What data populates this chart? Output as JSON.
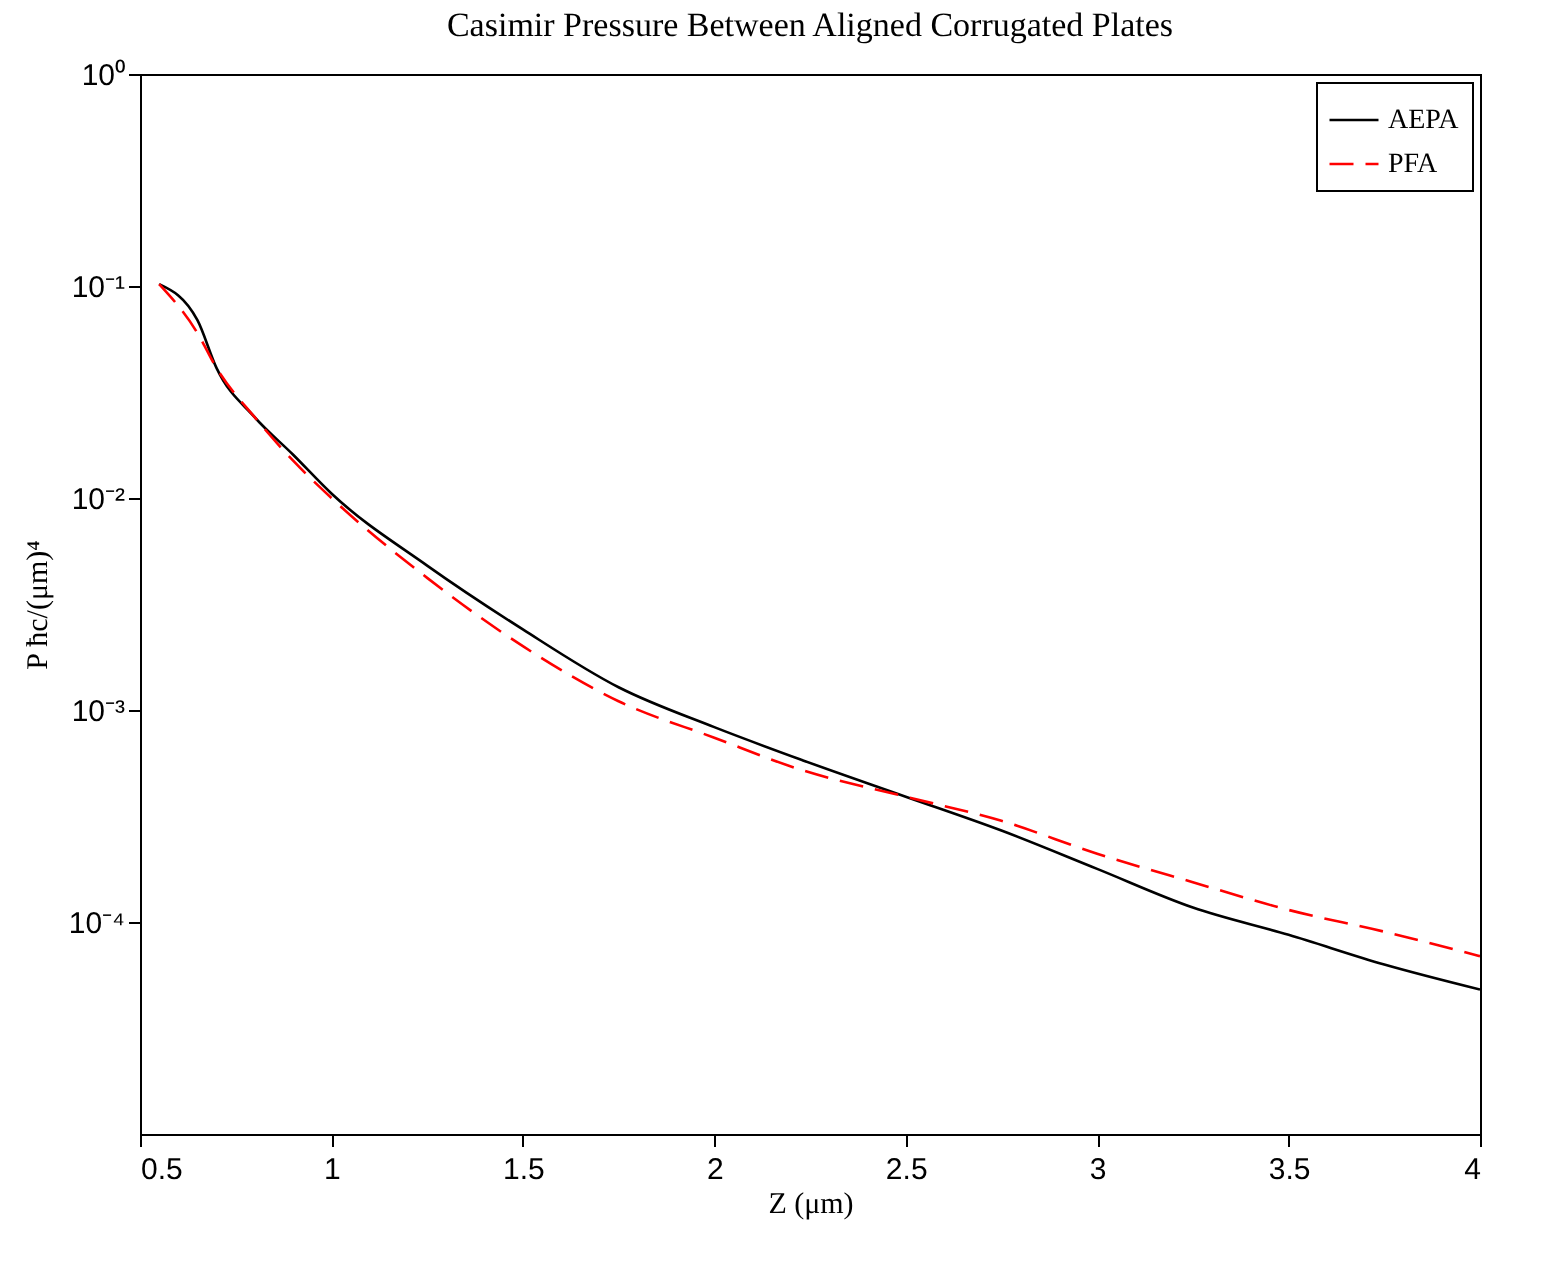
{
  "chart_data": {
    "type": "line",
    "title": "Casimir Pressure Between Aligned Corrugated Plates",
    "xlabel": "Z (μm)",
    "ylabel": "P ħc/(μm)⁴",
    "log": "y",
    "xlim": [
      0.5,
      4
    ],
    "xticks": [
      0.5,
      1,
      1.5,
      2,
      2.5,
      3,
      3.5,
      4
    ],
    "ylim": [
      1e-05,
      1
    ],
    "yticks": [
      {
        "value": 1,
        "label": "10⁰"
      },
      {
        "value": 0.1,
        "label": "10⁻¹"
      },
      {
        "value": 0.01,
        "label": "10⁻²"
      },
      {
        "value": 0.001,
        "label": "10⁻³"
      },
      {
        "value": 0.0001,
        "label": "10⁻⁴"
      }
    ],
    "grid": false,
    "legend": "top right",
    "marker": "none",
    "x": [
      0.55,
      0.65,
      0.7,
      0.8,
      0.9,
      1.0,
      1.25,
      1.5,
      1.75,
      2.0,
      2.23,
      2.5,
      2.75,
      3.0,
      3.25,
      3.5,
      3.75,
      4.0
    ],
    "series": [
      {
        "name": "AEPA",
        "color": "#000000",
        "line_style": "solid",
        "values": [
          0.102,
          0.069,
          0.041,
          0.024,
          0.016,
          0.0105,
          0.0048,
          0.0024,
          0.00128,
          0.00083,
          0.00058,
          0.00039,
          0.00027,
          0.000178,
          0.000117,
          8.7e-05,
          6.3e-05,
          4.8e-05
        ]
      },
      {
        "name": "PFA",
        "color": "#ff0000",
        "line_style": "dashed",
        "values": [
          0.102,
          0.06,
          0.041,
          0.024,
          0.015,
          0.01,
          0.0042,
          0.002,
          0.0011,
          0.00074,
          0.00052,
          0.00039,
          0.0003,
          0.00021,
          0.000154,
          0.000114,
          9e-05,
          6.9e-05
        ]
      }
    ]
  }
}
